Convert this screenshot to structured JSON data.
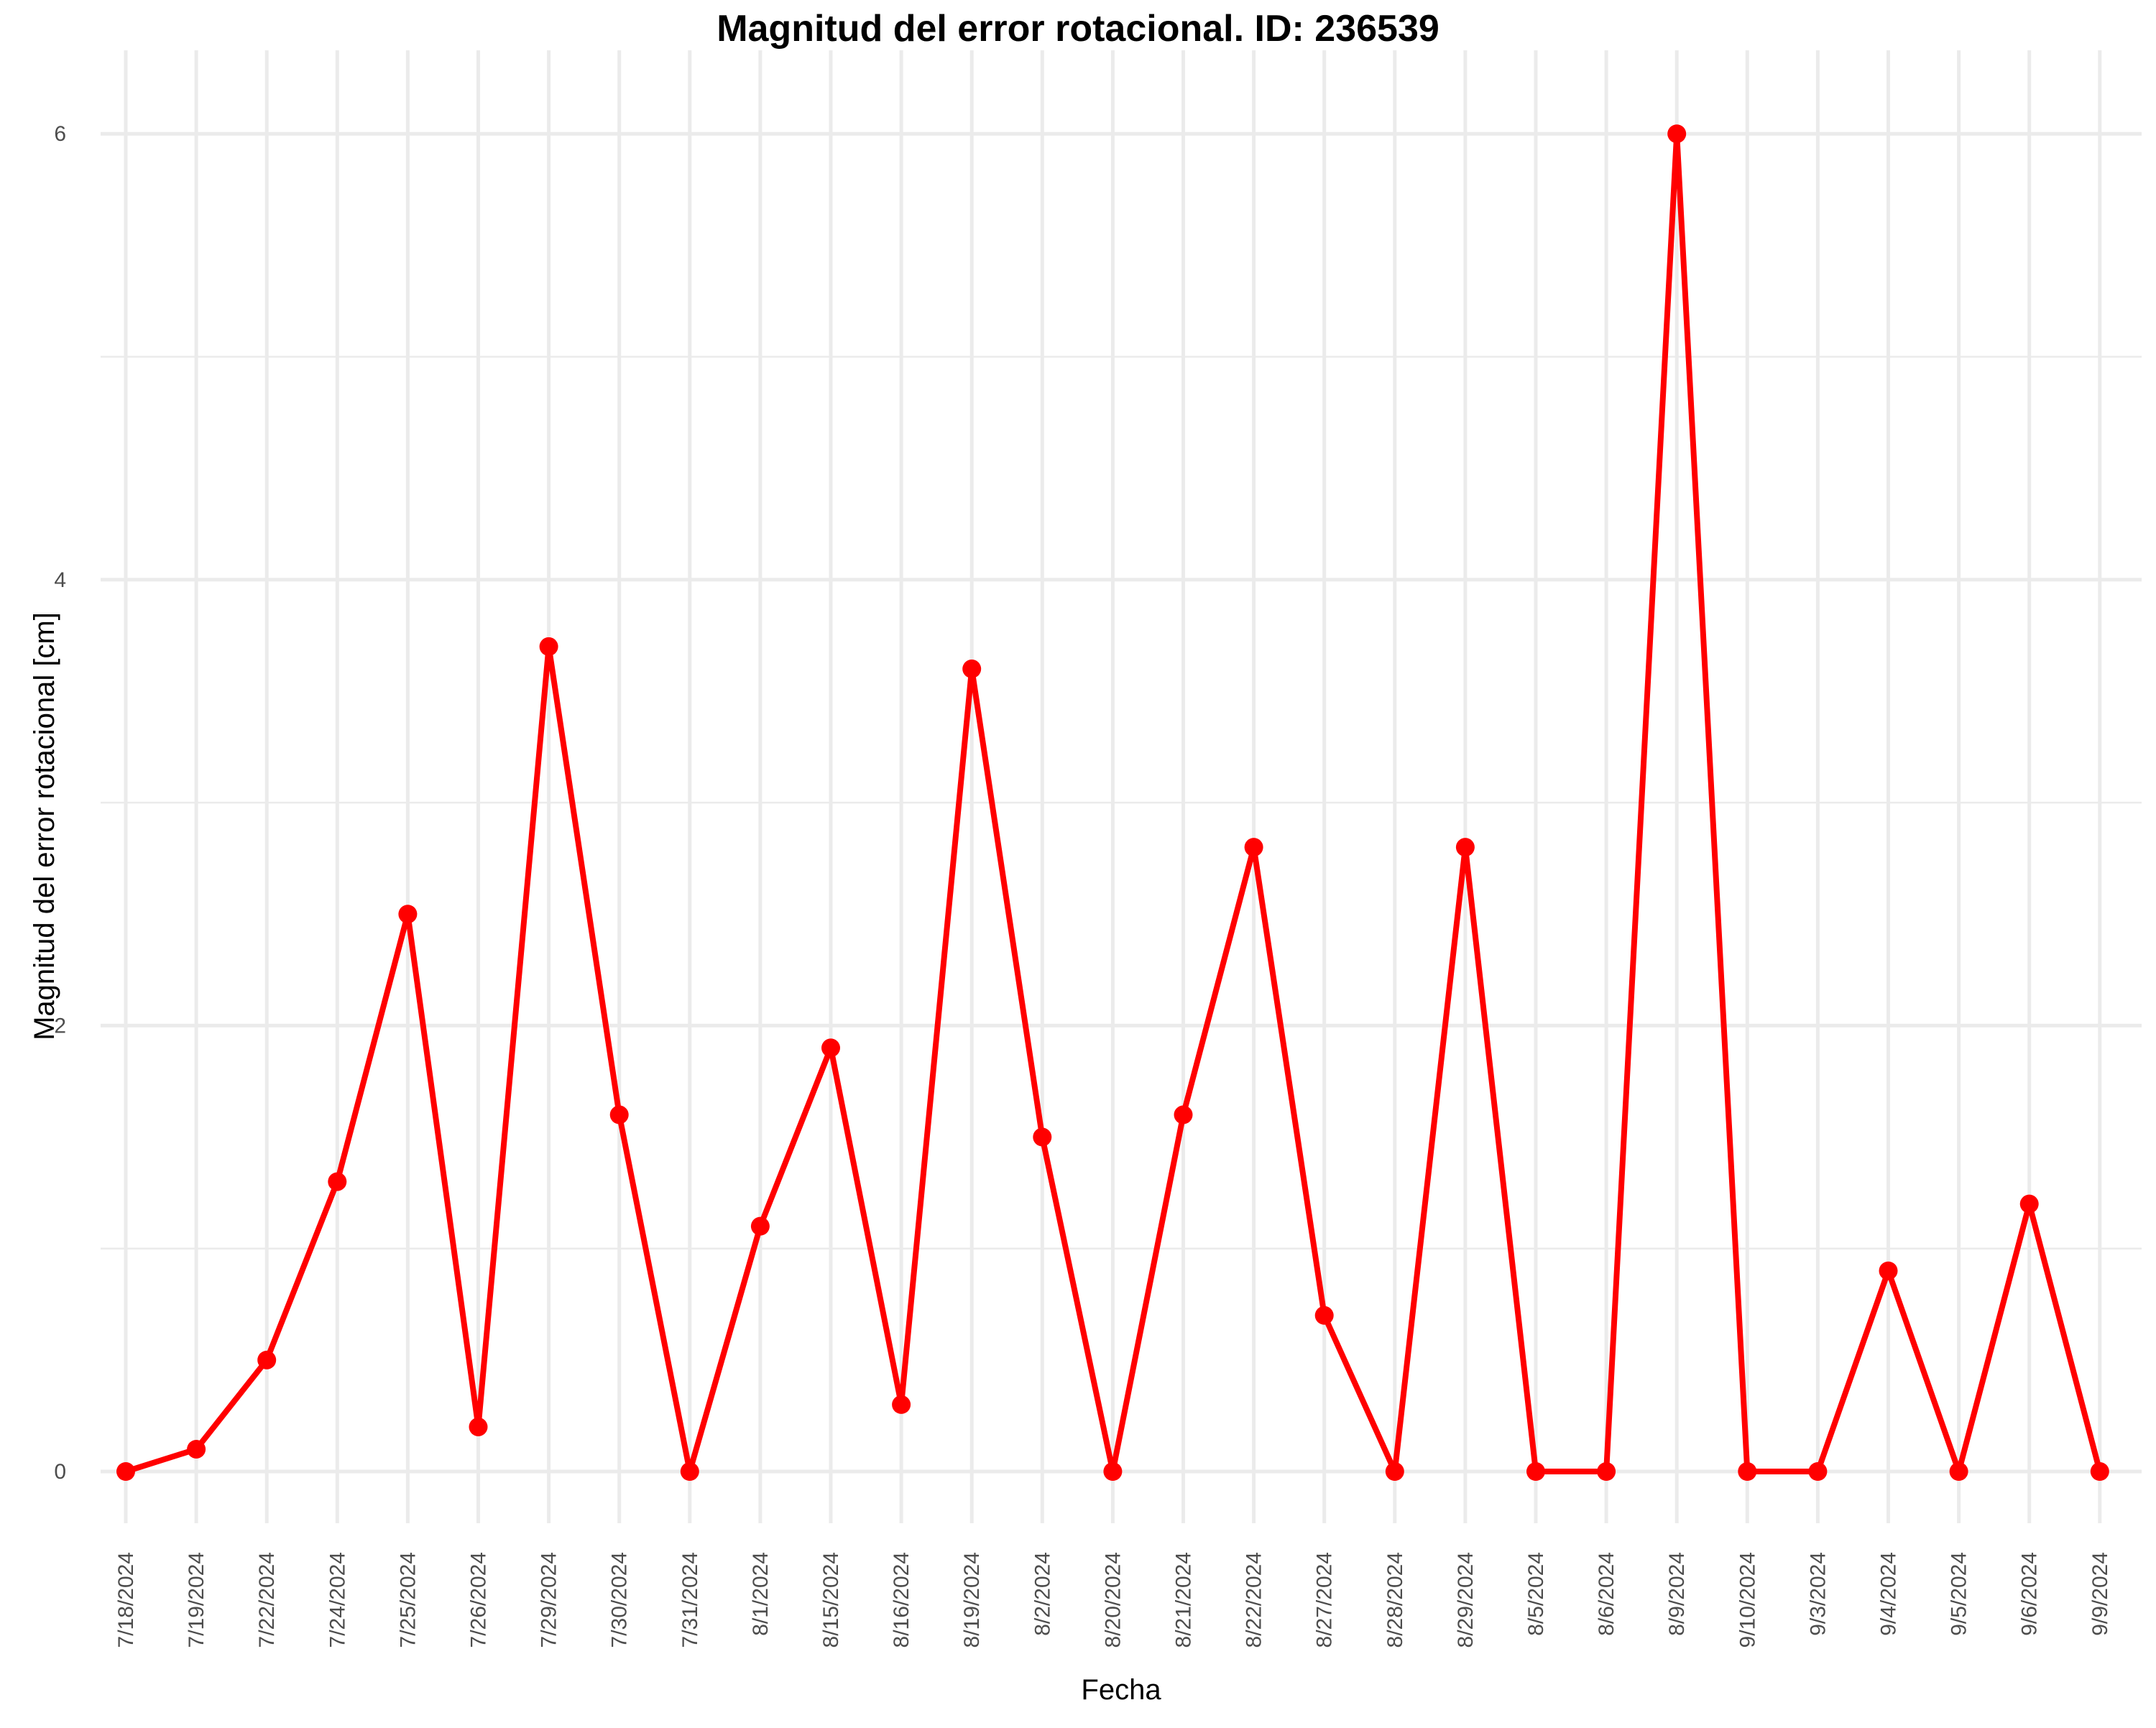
{
  "chart_data": {
    "type": "line",
    "title": "Magnitud del error rotacional. ID: 236539",
    "xlabel": "Fecha",
    "ylabel": "Magnitud del error rotacional [cm]",
    "categories": [
      "7/18/2024",
      "7/19/2024",
      "7/22/2024",
      "7/24/2024",
      "7/25/2024",
      "7/26/2024",
      "7/29/2024",
      "7/30/2024",
      "7/31/2024",
      "8/1/2024",
      "8/15/2024",
      "8/16/2024",
      "8/19/2024",
      "8/2/2024",
      "8/20/2024",
      "8/21/2024",
      "8/22/2024",
      "8/27/2024",
      "8/28/2024",
      "8/29/2024",
      "8/5/2024",
      "8/6/2024",
      "8/9/2024",
      "9/10/2024",
      "9/3/2024",
      "9/4/2024",
      "9/5/2024",
      "9/6/2024",
      "9/9/2024"
    ],
    "values": [
      0,
      0.1,
      0.5,
      1.3,
      2.5,
      0.2,
      3.7,
      1.6,
      0,
      1.1,
      1.9,
      0.3,
      3.6,
      1.5,
      0,
      1.6,
      2.8,
      0.7,
      0,
      2.8,
      0,
      0,
      6.0,
      0,
      0,
      0.9,
      0,
      1.2,
      0
    ],
    "yticks": [
      0,
      2,
      4,
      6
    ],
    "ylim": [
      -0.3,
      6.3
    ],
    "grid": true,
    "color": "#ff0000",
    "gridColor": "#ebebeb"
  }
}
